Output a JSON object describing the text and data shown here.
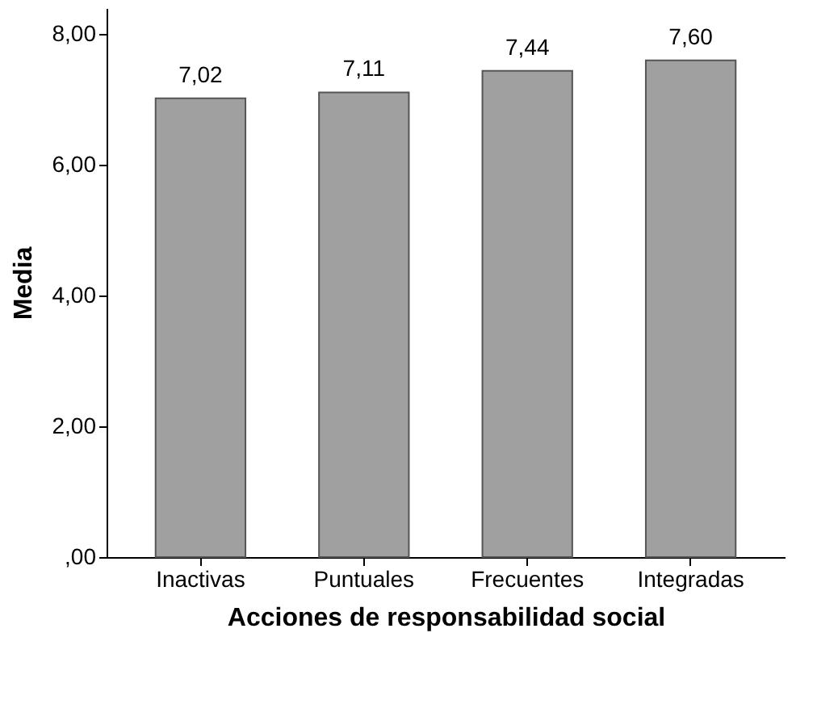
{
  "chart_data": {
    "type": "bar",
    "xlabel": "Acciones de responsabilidad social",
    "ylabel": "Media",
    "categories": [
      "Inactivas",
      "Puntuales",
      "Frecuentes",
      "Integradas"
    ],
    "values": [
      7.02,
      7.11,
      7.44,
      7.6
    ],
    "value_labels": [
      "7,02",
      "7,11",
      "7,44",
      "7,60"
    ],
    "color": "#a0a0a0",
    "ylim": [
      0,
      8.4
    ],
    "yticks": [
      {
        "value": 0,
        "label": ",00"
      },
      {
        "value": 2,
        "label": "2,00"
      },
      {
        "value": 4,
        "label": "4,00"
      },
      {
        "value": 6,
        "label": "6,00"
      },
      {
        "value": 8,
        "label": "8,00"
      }
    ],
    "grid": false
  }
}
